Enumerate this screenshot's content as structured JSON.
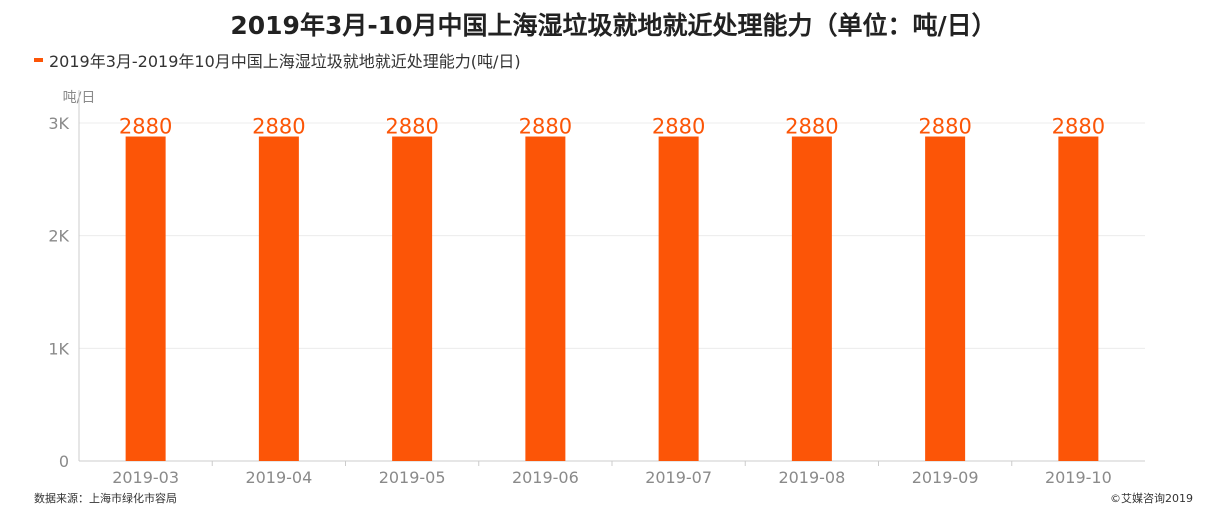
{
  "page": {
    "title": "2019年3月-10月中国上海湿垃圾就地就近处理能力（单位：吨/日）",
    "source": "数据来源：上海市绿化市容局",
    "copyright": "©艾媒咨询2019"
  },
  "colors": {
    "bar": "#fc5507",
    "label": "#fc5507",
    "axis": "#cccccc",
    "grid": "#ececec",
    "tick_text": "#8a8a8a"
  },
  "chart_data": {
    "type": "bar",
    "categories": [
      "2019-03",
      "2019-04",
      "2019-05",
      "2019-06",
      "2019-07",
      "2019-08",
      "2019-09",
      "2019-10"
    ],
    "series": [
      {
        "name": "2019年3月-2019年10月中国上海湿垃圾就地就近处理能力(吨/日)",
        "values": [
          2880,
          2880,
          2880,
          2880,
          2880,
          2880,
          2880,
          2880
        ]
      }
    ],
    "y_unit": "吨/日",
    "ylim": [
      0,
      3000
    ],
    "yticks": [
      0,
      1000,
      2000,
      3000
    ],
    "ytick_labels": [
      "0",
      "1K",
      "2K",
      "3K"
    ],
    "grid": true,
    "legend": "top-left"
  }
}
